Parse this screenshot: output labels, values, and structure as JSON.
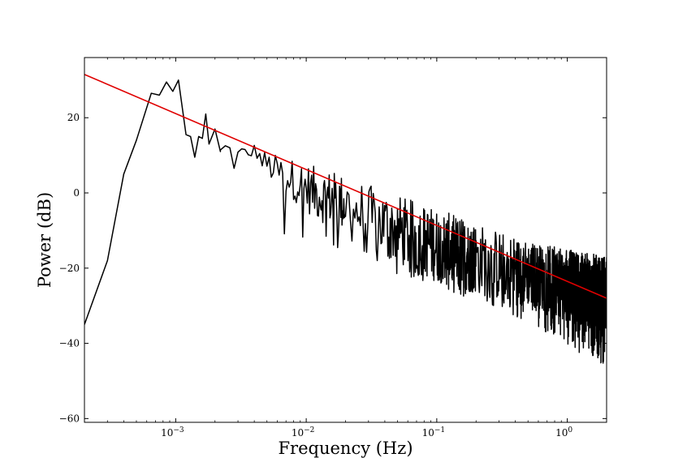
{
  "chart_data": {
    "type": "line",
    "title": "",
    "xlabel": "Frequency (Hz)",
    "ylabel": "Power (dB)",
    "x_scale": "log",
    "xlim": [
      0.0002,
      2.0
    ],
    "ylim": [
      -61,
      36
    ],
    "grid": false,
    "x_ticks": [
      {
        "value": 0.001,
        "label": "10−3",
        "base": "10",
        "exp": "−3"
      },
      {
        "value": 0.01,
        "label": "10−2",
        "base": "10",
        "exp": "−2"
      },
      {
        "value": 0.1,
        "label": "10−1",
        "base": "10",
        "exp": "−1"
      },
      {
        "value": 1,
        "label": "10⁰",
        "base": "10",
        "exp": "0"
      }
    ],
    "y_ticks": [
      {
        "value": 20,
        "label": "20"
      },
      {
        "value": 0,
        "label": "0"
      },
      {
        "value": -20,
        "label": "−20"
      },
      {
        "value": -40,
        "label": "−40"
      },
      {
        "value": -60,
        "label": "−60"
      }
    ],
    "series": [
      {
        "color": "#000000",
        "style": "spectrum",
        "x": [
          0.0002,
          0.0003,
          0.0004,
          0.0005,
          0.00065,
          0.00075,
          0.00085,
          0.00095,
          0.00105,
          0.0012,
          0.0013,
          0.0014,
          0.0015,
          0.0016,
          0.0017,
          0.0018,
          0.002,
          0.0022,
          0.0025,
          0.0028,
          0.0032,
          0.0036,
          0.004,
          0.0045,
          0.005,
          0.006,
          0.007,
          0.008,
          0.009,
          0.01,
          0.013,
          0.017,
          0.022,
          0.03,
          0.04,
          0.05,
          0.07,
          0.1,
          0.15,
          0.2,
          0.3,
          0.5,
          0.7,
          1.0,
          1.5,
          2.0
        ],
        "y": [
          -35,
          -18,
          5,
          14,
          26.5,
          26,
          29.5,
          27,
          30,
          15.5,
          15,
          9.5,
          15,
          14.5,
          21,
          13,
          17,
          11,
          13,
          9,
          11,
          10,
          12,
          9,
          8,
          6,
          5,
          4,
          3,
          2,
          0,
          -1,
          -3,
          -6,
          -7.5,
          -9,
          -11,
          -13,
          -15,
          -16.5,
          -18.5,
          -20.5,
          -22,
          -23.5,
          -25,
          -26
        ],
        "noise_floor": [
          -12,
          -15,
          -19,
          -25,
          -31,
          -36,
          -41,
          -46
        ],
        "noise_floor_x": [
          0.003,
          0.01,
          0.03,
          0.1,
          0.3,
          0.6,
          1.0,
          2.0
        ],
        "noise_ceiling": [
          14,
          12,
          8,
          2,
          -4,
          -8,
          -9,
          -10
        ]
      },
      {
        "color": "#e00000",
        "style": "fit",
        "x": [
          0.0002,
          2.0
        ],
        "y": [
          31.5,
          -28
        ]
      }
    ],
    "colors": {
      "spectrum": "#000000",
      "fit": "#e00000",
      "axes": "#000000"
    }
  }
}
